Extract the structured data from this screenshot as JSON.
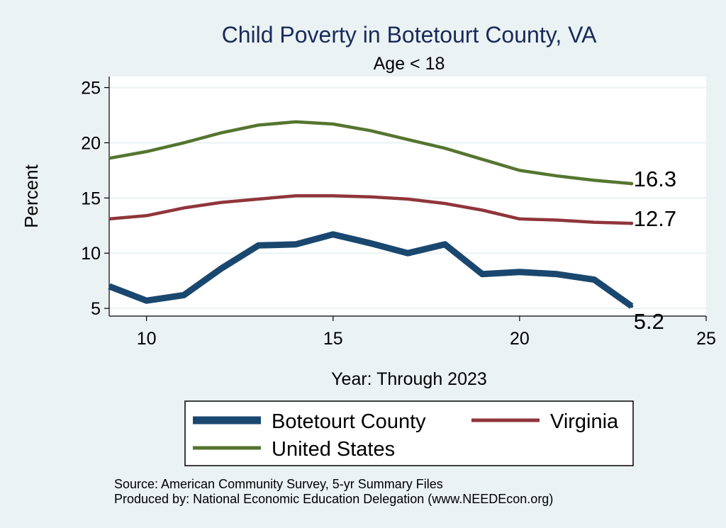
{
  "chart_data": {
    "type": "line",
    "title": "Child Poverty in Botetourt County, VA",
    "subtitle": "Age < 18",
    "xlabel": "Year: Through 2023",
    "ylabel": "Percent",
    "xlim": [
      9,
      25
    ],
    "ylim": [
      4.3,
      26
    ],
    "xticks": [
      10,
      15,
      20,
      25
    ],
    "yticks": [
      5,
      10,
      15,
      20,
      25
    ],
    "grid": true,
    "legend": "bottom",
    "series": [
      {
        "name": "Botetourt County",
        "color": "#1a476f",
        "x": [
          9,
          10,
          11,
          12,
          13,
          14,
          15,
          16,
          17,
          18,
          19,
          20,
          21,
          22,
          23
        ],
        "y": [
          7.0,
          5.7,
          6.2,
          8.6,
          10.7,
          10.8,
          11.7,
          10.9,
          10.0,
          10.8,
          8.1,
          8.3,
          8.1,
          7.6,
          5.2
        ],
        "end_label": "5.2"
      },
      {
        "name": "Virginia",
        "color": "#90353b",
        "x": [
          9,
          10,
          11,
          12,
          13,
          14,
          15,
          16,
          17,
          18,
          19,
          20,
          21,
          22,
          23
        ],
        "y": [
          13.1,
          13.4,
          14.1,
          14.6,
          14.9,
          15.2,
          15.2,
          15.1,
          14.9,
          14.5,
          13.9,
          13.1,
          13.0,
          12.8,
          12.7
        ],
        "end_label": "12.7"
      },
      {
        "name": "United States",
        "color": "#55752f",
        "x": [
          9,
          10,
          11,
          12,
          13,
          14,
          15,
          16,
          17,
          18,
          19,
          20,
          21,
          22,
          23
        ],
        "y": [
          18.6,
          19.2,
          20.0,
          20.9,
          21.6,
          21.9,
          21.7,
          21.1,
          20.3,
          19.5,
          18.5,
          17.5,
          17.0,
          16.6,
          16.3
        ],
        "end_label": "16.3"
      }
    ],
    "notes": [
      "Source: American Community Survey, 5-yr Summary Files",
      "Produced by: National Economic Education Delegation (www.NEEDEcon.org)"
    ]
  }
}
